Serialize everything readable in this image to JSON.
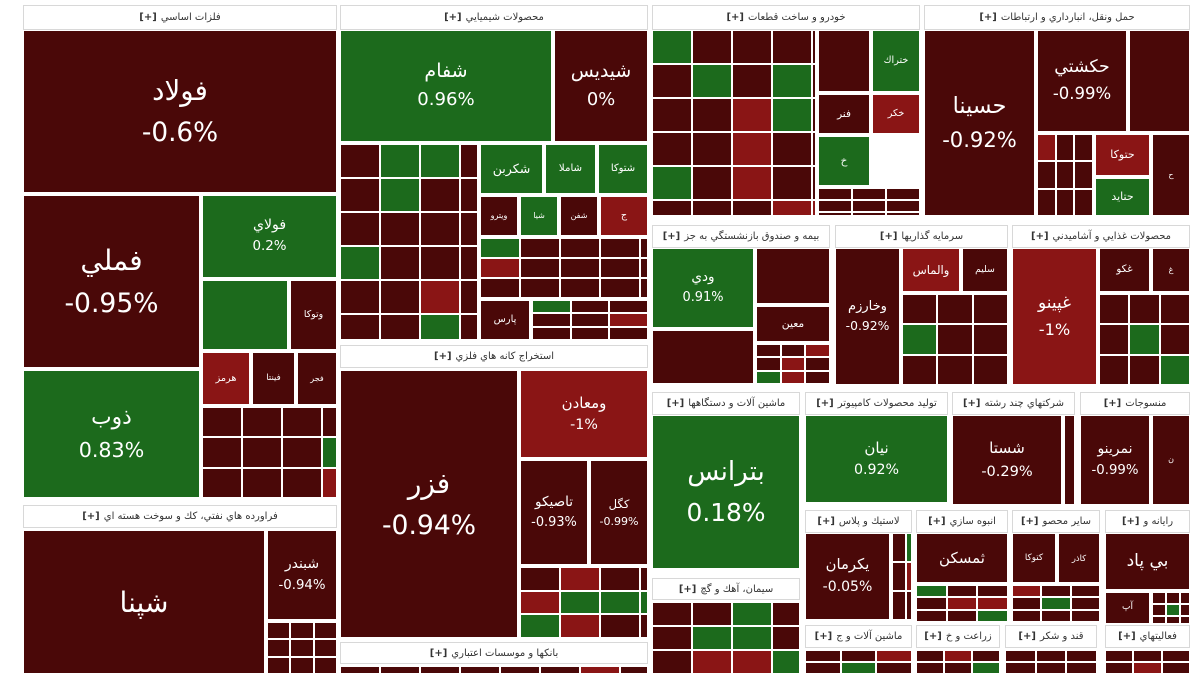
{
  "expand": "[+]",
  "sectors": [
    {
      "title": "فلزات اساسي",
      "tiles": [
        {
          "name": "فولاد",
          "change": "-0.6%"
        },
        {
          "name": "فملي",
          "change": "-0.95%"
        },
        {
          "name": "فولاي",
          "change": "0.2%"
        },
        {
          "name": "وتوكا"
        },
        {
          "name": "هرمز"
        },
        {
          "name": "فينتا"
        },
        {
          "name": "فجر"
        },
        {
          "name": "ذوب",
          "change": "0.83%"
        }
      ]
    },
    {
      "title": "فراورده هاي نفتي، كك و سوخت هسته اي",
      "tiles": [
        {
          "name": "شپنا"
        },
        {
          "name": "شبندر",
          "change": "-0.94%"
        }
      ]
    },
    {
      "title": "محصولات شيميايي",
      "tiles": [
        {
          "name": "شفام",
          "change": "0.96%"
        },
        {
          "name": "شيديس",
          "change": "0%"
        },
        {
          "name": "شتوكا"
        },
        {
          "name": "شاملا"
        },
        {
          "name": "شكربن"
        },
        {
          "name": "ويترو"
        },
        {
          "name": "شيا"
        },
        {
          "name": "شفن"
        },
        {
          "name": "ج"
        },
        {
          "name": "پارس"
        }
      ]
    },
    {
      "title": "استخراج كانه هاي فلزي",
      "tiles": [
        {
          "name": "فزر",
          "change": "-0.94%"
        },
        {
          "name": "ومعادن",
          "change": "-1%"
        },
        {
          "name": "تاصيكو",
          "change": "-0.93%"
        },
        {
          "name": "كگل",
          "change": "-0.99%"
        }
      ]
    },
    {
      "title": "بانكها و موسسات اعتباري",
      "tiles": []
    },
    {
      "title": "خودرو و ساخت قطعات",
      "tiles": [
        {
          "name": "ختراك"
        },
        {
          "name": "خكر"
        },
        {
          "name": "فنر"
        },
        {
          "name": "خ"
        }
      ]
    },
    {
      "title": "حمل ونقل، انبارداري و ارتباطات",
      "tiles": [
        {
          "name": "حسينا",
          "change": "-0.92%"
        },
        {
          "name": "حكشتي",
          "change": "-0.99%"
        },
        {
          "name": "حتوكا"
        },
        {
          "name": "حتايد"
        },
        {
          "name": "ح"
        }
      ]
    },
    {
      "title": "بيمه و صندوق بازنشستگي به جز",
      "tiles": [
        {
          "name": "ودي",
          "change": "0.91%"
        },
        {
          "name": "معين"
        }
      ]
    },
    {
      "title": "سرمايه گذاريها",
      "tiles": [
        {
          "name": "وخارزم",
          "change": "-0.92%"
        },
        {
          "name": "والماس"
        },
        {
          "name": "سليم"
        }
      ]
    },
    {
      "title": "محصولات غذايي و آشاميدني",
      "tiles": [
        {
          "name": "غپينو",
          "change": "-1%"
        },
        {
          "name": "غكو"
        },
        {
          "name": "غ"
        }
      ]
    },
    {
      "title": "ماشين آلات و دستگاهها",
      "tiles": [
        {
          "name": "بترانس",
          "change": "0.18%"
        }
      ]
    },
    {
      "title": "توليد محصولات كامپيوتر",
      "tiles": [
        {
          "name": "نيان",
          "change": "0.92%"
        }
      ]
    },
    {
      "title": "شركتهاي چند رشته",
      "tiles": [
        {
          "name": "شستا",
          "change": "-0.29%"
        }
      ]
    },
    {
      "title": "منسوجات",
      "tiles": [
        {
          "name": "نمرينو",
          "change": "-0.99%"
        },
        {
          "name": "ن"
        }
      ]
    },
    {
      "title": "سيمان، آهك و گچ",
      "tiles": []
    },
    {
      "title": "لاستيك و پلاس",
      "tiles": [
        {
          "name": "يكرمان",
          "change": "-0.05%"
        }
      ]
    },
    {
      "title": "انبوه سازي",
      "tiles": [
        {
          "name": "ثمسكن"
        }
      ]
    },
    {
      "title": "ساير محصو",
      "tiles": [
        {
          "name": "كتوكا"
        },
        {
          "name": "كاذر"
        }
      ]
    },
    {
      "title": "رايانه و",
      "tiles": [
        {
          "name": "بي پاد"
        },
        {
          "name": "آپ"
        }
      ]
    },
    {
      "title": "ماشين آلات و ج",
      "tiles": []
    },
    {
      "title": "زراعت و خ",
      "tiles": []
    },
    {
      "title": "قند و شكر",
      "tiles": []
    },
    {
      "title": "فعاليتهاي",
      "tiles": []
    }
  ]
}
